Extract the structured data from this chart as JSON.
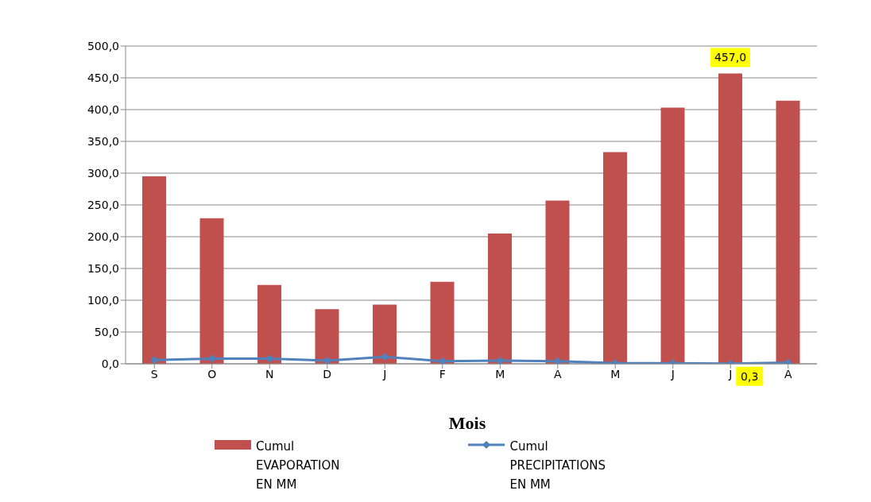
{
  "chart_data": {
    "type": "bar",
    "xlabel": "Mois",
    "categories": [
      "S",
      "O",
      "N",
      "D",
      "J",
      "F",
      "M",
      "A",
      "M",
      "J",
      "J",
      "A"
    ],
    "series": [
      {
        "name": "Cumul\nEVAPORATION\nEN MM",
        "color": "#c0504d",
        "values": [
          295,
          229,
          124,
          86,
          93,
          129,
          205,
          257,
          333,
          403,
          457,
          414
        ],
        "value_labels": [
          null,
          null,
          null,
          null,
          null,
          null,
          null,
          null,
          null,
          null,
          "457,0",
          null
        ]
      },
      {
        "type": "line",
        "name": "Cumul\nPRECIPITATIONS\nEN MM",
        "color": "#4f81bd",
        "values": [
          6,
          8,
          8,
          5,
          11,
          4,
          5,
          4,
          1,
          1,
          0.3,
          2
        ],
        "value_labels": [
          null,
          null,
          null,
          null,
          null,
          null,
          null,
          null,
          null,
          null,
          "0,3",
          null
        ]
      }
    ],
    "ylim": [
      0,
      500
    ],
    "yticks": [
      {
        "value": 0,
        "label": "0,0"
      },
      {
        "value": 50,
        "label": "50,0"
      },
      {
        "value": 100,
        "label": "100,0"
      },
      {
        "value": 150,
        "label": "150,0"
      },
      {
        "value": 200,
        "label": "200,0"
      },
      {
        "value": 250,
        "label": "250,0"
      },
      {
        "value": 300,
        "label": "300,0"
      },
      {
        "value": 350,
        "label": "350,0"
      },
      {
        "value": 400,
        "label": "400,0"
      },
      {
        "value": 450,
        "label": "450,0"
      },
      {
        "value": 500,
        "label": "500,0"
      }
    ],
    "grid": "y",
    "legend": "bottom",
    "marker": "diamond",
    "line_style": "solid"
  }
}
